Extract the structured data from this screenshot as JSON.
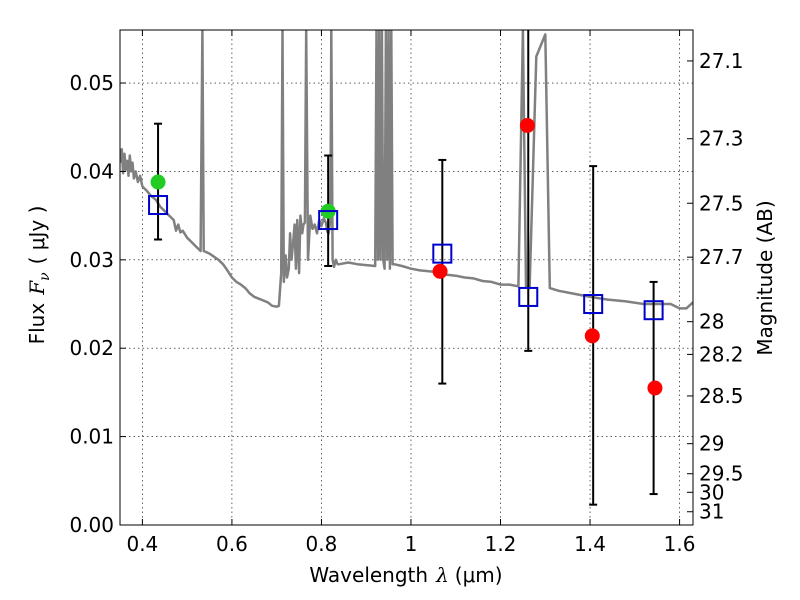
{
  "chart_data": {
    "type": "scatter",
    "x_axis": {
      "label": "Wavelength",
      "symbol": "λ",
      "unit": "(μm)",
      "range": [
        0.35,
        1.63
      ],
      "ticks": [
        0.4,
        0.6,
        0.8,
        1.0,
        1.2,
        1.4,
        1.6
      ],
      "tick_labels": [
        "0.4",
        "0.6",
        "0.8",
        "1",
        "1.2",
        "1.4",
        "1.6"
      ]
    },
    "y_axis": {
      "label": "Flux",
      "symbol": "F",
      "subscript": "ν",
      "unit": "( μJy )",
      "range": [
        0.0,
        0.056
      ],
      "ticks": [
        0.0,
        0.01,
        0.02,
        0.03,
        0.04,
        0.05
      ],
      "tick_labels": [
        "0.00",
        "0.01",
        "0.02",
        "0.03",
        "0.04",
        "0.05"
      ]
    },
    "y2_axis": {
      "label": "Magnitude (AB)",
      "tick_labels": [
        "27.1",
        "27.3",
        "27.5",
        "27.7",
        "28",
        "28.2",
        "28.5",
        "29",
        "29.5",
        "30",
        "31"
      ],
      "tick_flux_positions": [
        0.0525,
        0.0437,
        0.0364,
        0.0303,
        0.023,
        0.0193,
        0.0146,
        0.0092,
        0.0058,
        0.0037,
        0.0015
      ]
    },
    "grid": true,
    "series": [
      {
        "kind": "line",
        "color": "#808080",
        "points": [
          [
            0.35,
            0.041
          ],
          [
            0.354,
            0.0425
          ],
          [
            0.357,
            0.0398
          ],
          [
            0.36,
            0.042
          ],
          [
            0.363,
            0.0402
          ],
          [
            0.366,
            0.0412
          ],
          [
            0.369,
            0.0395
          ],
          [
            0.372,
            0.0418
          ],
          [
            0.375,
            0.04
          ],
          [
            0.378,
            0.041
          ],
          [
            0.381,
            0.0392
          ],
          [
            0.385,
            0.04
          ],
          [
            0.39,
            0.0388
          ],
          [
            0.395,
            0.0395
          ],
          [
            0.4,
            0.0383
          ],
          [
            0.41,
            0.0378
          ],
          [
            0.42,
            0.0372
          ],
          [
            0.43,
            0.0368
          ],
          [
            0.44,
            0.036
          ],
          [
            0.45,
            0.0355
          ],
          [
            0.46,
            0.035
          ],
          [
            0.47,
            0.0345
          ],
          [
            0.475,
            0.0333
          ],
          [
            0.48,
            0.034
          ],
          [
            0.485,
            0.0331
          ],
          [
            0.49,
            0.0333
          ],
          [
            0.5,
            0.0325
          ],
          [
            0.51,
            0.032
          ],
          [
            0.52,
            0.0315
          ],
          [
            0.53,
            0.031
          ],
          [
            0.534,
            0.056
          ],
          [
            0.537,
            0.031
          ],
          [
            0.55,
            0.0307
          ],
          [
            0.57,
            0.03
          ],
          [
            0.58,
            0.0295
          ],
          [
            0.59,
            0.0288
          ],
          [
            0.6,
            0.028
          ],
          [
            0.61,
            0.0275
          ],
          [
            0.62,
            0.0272
          ],
          [
            0.63,
            0.0268
          ],
          [
            0.64,
            0.0262
          ],
          [
            0.65,
            0.0258
          ],
          [
            0.66,
            0.0256
          ],
          [
            0.67,
            0.0254
          ],
          [
            0.68,
            0.0252
          ],
          [
            0.69,
            0.0248
          ],
          [
            0.7,
            0.0247
          ],
          [
            0.705,
            0.0248
          ],
          [
            0.71,
            0.0285
          ],
          [
            0.713,
            0.056
          ],
          [
            0.716,
            0.0275
          ],
          [
            0.72,
            0.0305
          ],
          [
            0.723,
            0.028
          ],
          [
            0.727,
            0.029
          ],
          [
            0.73,
            0.033
          ],
          [
            0.733,
            0.03
          ],
          [
            0.737,
            0.032
          ],
          [
            0.74,
            0.034
          ],
          [
            0.743,
            0.029
          ],
          [
            0.746,
            0.0345
          ],
          [
            0.75,
            0.0285
          ],
          [
            0.753,
            0.035
          ],
          [
            0.757,
            0.033
          ],
          [
            0.76,
            0.034
          ],
          [
            0.763,
            0.0342
          ],
          [
            0.766,
            0.056
          ],
          [
            0.77,
            0.03
          ],
          [
            0.775,
            0.035
          ],
          [
            0.78,
            0.0335
          ],
          [
            0.785,
            0.034
          ],
          [
            0.79,
            0.033
          ],
          [
            0.795,
            0.0345
          ],
          [
            0.8,
            0.0338
          ],
          [
            0.805,
            0.0347
          ],
          [
            0.81,
            0.0342
          ],
          [
            0.813,
            0.0332
          ],
          [
            0.816,
            0.033
          ],
          [
            0.82,
            0.0345
          ],
          [
            0.822,
            0.056
          ],
          [
            0.825,
            0.03
          ],
          [
            0.828,
            0.0292
          ],
          [
            0.832,
            0.03
          ],
          [
            0.836,
            0.0295
          ],
          [
            0.84,
            0.0295
          ],
          [
            0.86,
            0.0297
          ],
          [
            0.88,
            0.0295
          ],
          [
            0.9,
            0.0294
          ],
          [
            0.92,
            0.0293
          ],
          [
            0.923,
            0.056
          ],
          [
            0.926,
            0.03
          ],
          [
            0.929,
            0.056
          ],
          [
            0.932,
            0.03
          ],
          [
            0.935,
            0.056
          ],
          [
            0.938,
            0.03
          ],
          [
            0.941,
            0.029
          ],
          [
            0.944,
            0.056
          ],
          [
            0.947,
            0.03
          ],
          [
            0.95,
            0.056
          ],
          [
            0.953,
            0.029
          ],
          [
            0.956,
            0.056
          ],
          [
            0.959,
            0.0295
          ],
          [
            0.962,
            0.0295
          ],
          [
            0.98,
            0.0293
          ],
          [
            1.0,
            0.029
          ],
          [
            1.02,
            0.0288
          ],
          [
            1.04,
            0.0287
          ],
          [
            1.06,
            0.0286
          ],
          [
            1.08,
            0.0283
          ],
          [
            1.1,
            0.0282
          ],
          [
            1.12,
            0.028
          ],
          [
            1.14,
            0.0279
          ],
          [
            1.16,
            0.0276
          ],
          [
            1.18,
            0.0275
          ],
          [
            1.2,
            0.0272
          ],
          [
            1.22,
            0.0272
          ],
          [
            1.24,
            0.027
          ],
          [
            1.25,
            0.056
          ],
          [
            1.257,
            0.027
          ],
          [
            1.265,
            0.0268
          ],
          [
            1.28,
            0.053
          ],
          [
            1.3,
            0.0555
          ],
          [
            1.31,
            0.0268
          ],
          [
            1.33,
            0.0265
          ],
          [
            1.36,
            0.0262
          ],
          [
            1.4,
            0.0258
          ],
          [
            1.44,
            0.0255
          ],
          [
            1.48,
            0.0253
          ],
          [
            1.52,
            0.025
          ],
          [
            1.56,
            0.025
          ],
          [
            1.58,
            0.025
          ],
          [
            1.6,
            0.0245
          ],
          [
            1.615,
            0.0245
          ],
          [
            1.63,
            0.0252
          ]
        ]
      },
      {
        "kind": "points",
        "marker": "circle",
        "color": "#22cc22",
        "points": [
          [
            0.435,
            0.0388
          ],
          [
            0.815,
            0.0355
          ]
        ]
      },
      {
        "kind": "points",
        "marker": "circle",
        "color": "#ff0000",
        "points": [
          [
            1.065,
            0.0287
          ],
          [
            1.26,
            0.0452
          ],
          [
            1.405,
            0.0214
          ],
          [
            1.545,
            0.0155
          ]
        ]
      },
      {
        "kind": "points",
        "marker": "open-square",
        "color": "#0000cc",
        "points": [
          [
            0.435,
            0.0362
          ],
          [
            0.815,
            0.0345
          ],
          [
            1.07,
            0.0307
          ],
          [
            1.262,
            0.0258
          ],
          [
            1.407,
            0.025
          ],
          [
            1.542,
            0.0243
          ]
        ]
      },
      {
        "kind": "errorbars",
        "color": "#000000",
        "bars": [
          {
            "x": 0.435,
            "low": 0.0323,
            "high": 0.0454
          },
          {
            "x": 0.815,
            "low": 0.0293,
            "high": 0.0418
          },
          {
            "x": 1.07,
            "low": 0.016,
            "high": 0.0413
          },
          {
            "x": 1.262,
            "low": 0.0197,
            "high": 0.0565
          },
          {
            "x": 1.407,
            "low": 0.0023,
            "high": 0.0406
          },
          {
            "x": 1.542,
            "low": 0.0035,
            "high": 0.0275
          }
        ]
      }
    ]
  }
}
